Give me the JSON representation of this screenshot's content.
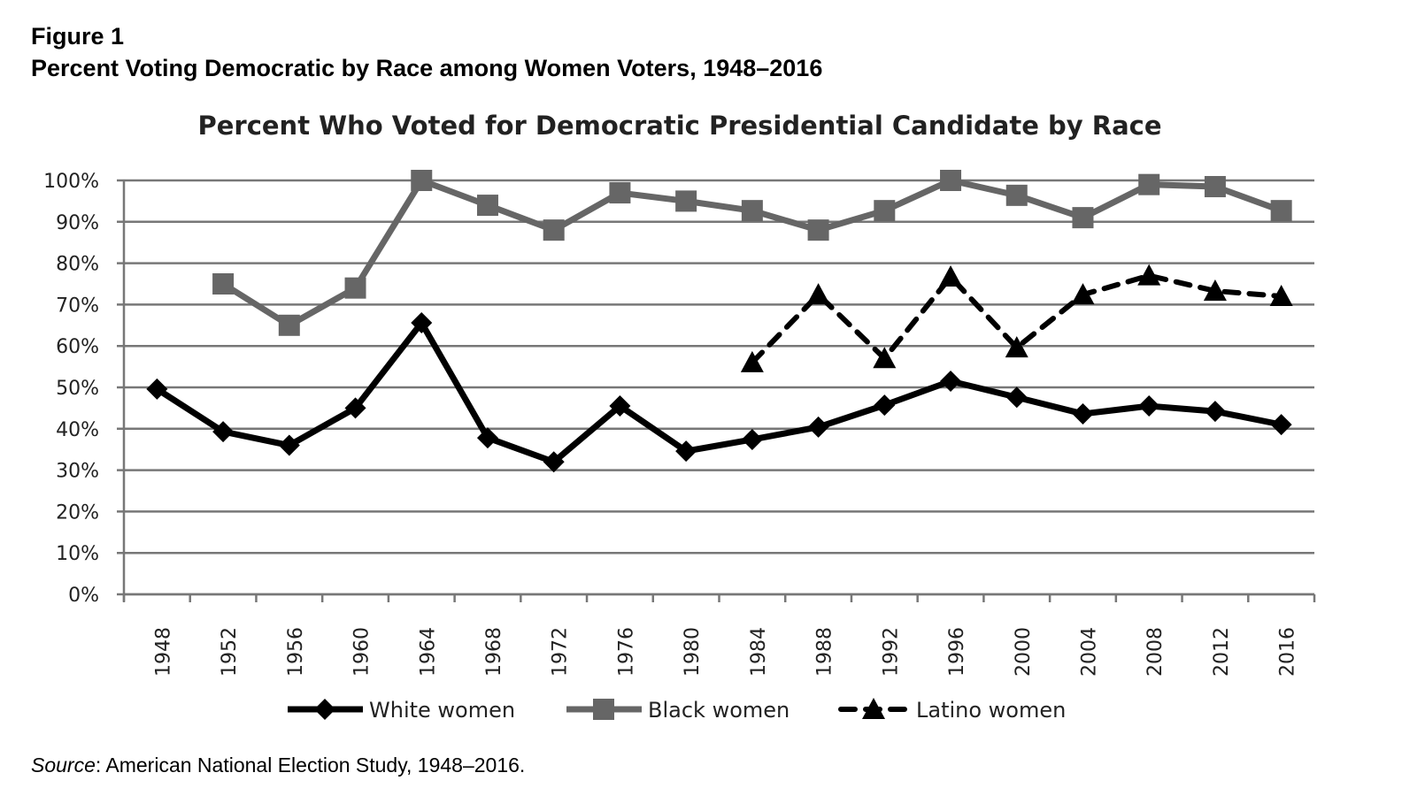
{
  "figure": {
    "label": "Figure 1",
    "title": "Percent Voting Democratic by Race among Women Voters, 1948–2016",
    "source_label": "Source",
    "source_text": ": American National Election Study, 1948–2016."
  },
  "chart_data": {
    "type": "line",
    "title": "Percent Who Voted for Democratic Presidential Candidate by Race",
    "xlabel": "",
    "ylabel": "",
    "x": [
      "1948",
      "1952",
      "1956",
      "1960",
      "1964",
      "1968",
      "1972",
      "1976",
      "1980",
      "1984",
      "1988",
      "1992",
      "1996",
      "2000",
      "2004",
      "2008",
      "2012",
      "2016"
    ],
    "ylim": [
      0,
      100
    ],
    "yticks": [
      0,
      10,
      20,
      30,
      40,
      50,
      60,
      70,
      80,
      90,
      100
    ],
    "ytick_labels": [
      "0%",
      "10%",
      "20%",
      "30%",
      "40%",
      "50%",
      "60%",
      "70%",
      "80%",
      "90%",
      "100%"
    ],
    "grid": true,
    "legend_position": "bottom",
    "series": [
      {
        "name": "White women",
        "color": "#000000",
        "marker": "diamond",
        "dash": "solid",
        "values": [
          49.6,
          39.3,
          36.0,
          45.0,
          65.6,
          37.8,
          32.0,
          45.5,
          34.6,
          37.4,
          40.4,
          45.7,
          51.5,
          47.6,
          43.6,
          45.5,
          44.2,
          41.0
        ]
      },
      {
        "name": "Black women",
        "color": "#666666",
        "marker": "square",
        "dash": "solid",
        "values": [
          null,
          75.0,
          65.0,
          74.0,
          100.0,
          94.0,
          88.0,
          97.0,
          95.0,
          92.7,
          88.0,
          92.7,
          100.0,
          96.4,
          91.0,
          99.0,
          98.5,
          92.7
        ]
      },
      {
        "name": "Latino women",
        "color": "#000000",
        "marker": "triangle",
        "dash": "dashed",
        "values": [
          null,
          null,
          null,
          null,
          null,
          null,
          null,
          null,
          null,
          56.0,
          72.4,
          57.0,
          76.7,
          59.6,
          72.4,
          77.0,
          73.3,
          72.0
        ]
      }
    ]
  }
}
